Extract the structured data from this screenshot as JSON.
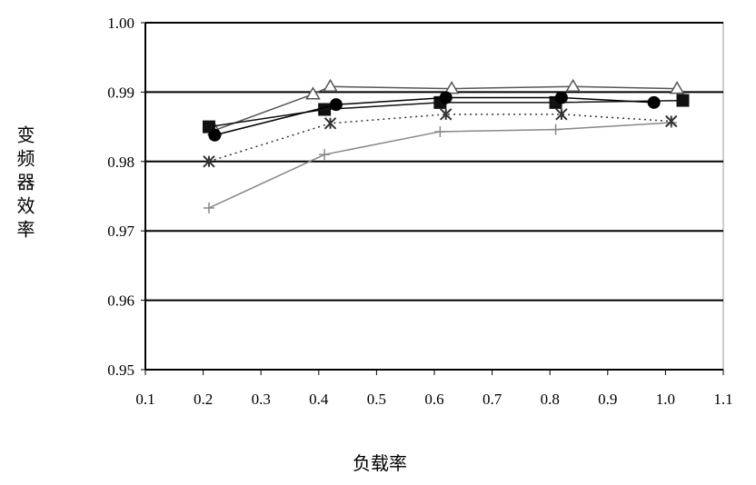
{
  "chart_data": {
    "type": "line",
    "x_label": "负载率",
    "y_label": "变频器效率",
    "xlim": [
      0.1,
      1.1
    ],
    "ylim": [
      0.95,
      1.0
    ],
    "xticks": [
      0.1,
      0.2,
      0.3,
      0.4,
      0.5,
      0.6,
      0.7,
      0.8,
      0.9,
      {
        "value": 1.0,
        "label": "1.0"
      },
      1.1
    ],
    "yticks": [
      0.95,
      0.96,
      0.97,
      0.98,
      0.99,
      {
        "value": 1.0,
        "label": "1.00"
      }
    ],
    "grid": true,
    "series": [
      {
        "color": "#888888",
        "marker": "plus",
        "line_style": "solid",
        "x": [
          0.21,
          0.41,
          0.61,
          0.81,
          1.01
        ],
        "values": [
          0.9733,
          0.981,
          0.9843,
          0.9846,
          0.9856
        ]
      },
      {
        "color": "#333333",
        "marker": "star",
        "line_style": "dotted",
        "x": [
          0.21,
          0.42,
          0.62,
          0.82,
          1.01
        ],
        "values": [
          0.98,
          0.9855,
          0.9868,
          0.9868,
          0.9858
        ]
      },
      {
        "color": "#555555",
        "marker": "triangle",
        "line_style": "solid",
        "x": [
          0.22,
          0.39,
          0.42,
          0.63,
          0.84,
          1.02
        ],
        "values": [
          0.9845,
          0.9897,
          0.9908,
          0.9905,
          0.9908,
          0.9905
        ]
      },
      {
        "color": "#111111",
        "marker": "square",
        "line_style": "solid",
        "x": [
          0.21,
          0.41,
          0.61,
          0.81,
          1.03
        ],
        "values": [
          0.985,
          0.9875,
          0.9885,
          0.9885,
          0.9888
        ]
      },
      {
        "color": "#000000",
        "marker": "circle",
        "line_style": "solid",
        "x": [
          0.22,
          0.43,
          0.62,
          0.82,
          0.98
        ],
        "values": [
          0.9838,
          0.9882,
          0.9892,
          0.9892,
          0.9885
        ]
      }
    ]
  }
}
